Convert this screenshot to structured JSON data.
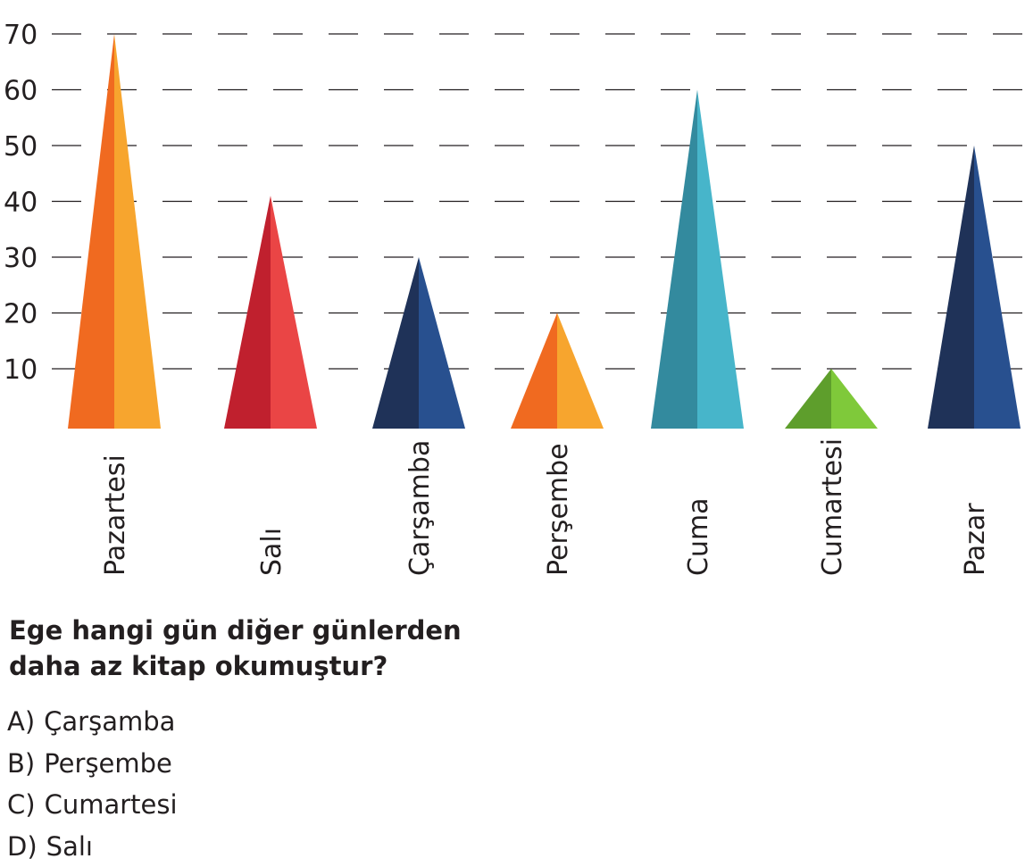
{
  "chart_data": {
    "type": "bar",
    "mark_shape": "triangle",
    "categories": [
      "Pazartesi",
      "Salı",
      "Çarşamba",
      "Perşembe",
      "Cuma",
      "Cumartesi",
      "Pazar"
    ],
    "values": [
      70,
      41,
      30,
      20,
      60,
      10,
      50
    ],
    "y_ticks": [
      10,
      20,
      30,
      40,
      50,
      60,
      70
    ],
    "ylim": [
      0,
      70
    ],
    "grid": true,
    "grid_style": "dashed",
    "colors": [
      {
        "dark": "#f06a20",
        "light": "#f7a52e"
      },
      {
        "dark": "#c0202e",
        "light": "#ea4545"
      },
      {
        "dark": "#1f3258",
        "light": "#28508f"
      },
      {
        "dark": "#f06a20",
        "light": "#f7a52e"
      },
      {
        "dark": "#338a9e",
        "light": "#47b5ca"
      },
      {
        "dark": "#5e9e2c",
        "light": "#7fc93a"
      },
      {
        "dark": "#1f3258",
        "light": "#28508f"
      }
    ]
  },
  "question": {
    "line1": "Ege hangi gün diğer günlerden",
    "line2": "daha az kitap okumuştur?"
  },
  "options": [
    {
      "letter": "A)",
      "text": "Çarşamba"
    },
    {
      "letter": "B)",
      "text": "Perşembe"
    },
    {
      "letter": "C)",
      "text": "Cumartesi"
    },
    {
      "letter": "D)",
      "text": "Salı"
    }
  ]
}
